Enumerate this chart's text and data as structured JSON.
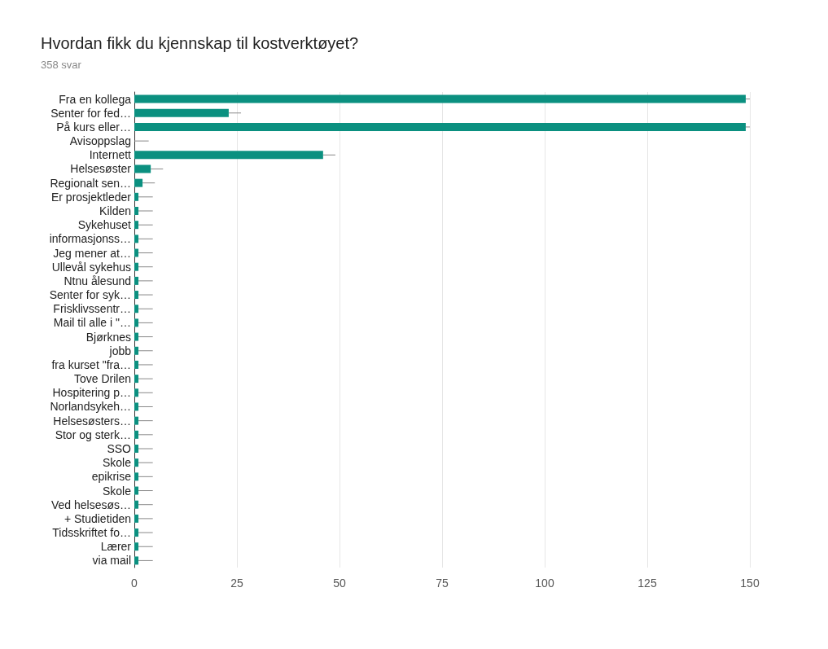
{
  "chart_data": {
    "type": "bar",
    "orientation": "horizontal",
    "title": "Hvordan fikk du kjennskap til kostverktøyet?",
    "subtitle": "358 svar",
    "categories": [
      "Fra en kollega",
      "Senter for fed…",
      "På kurs eller…",
      "Avisoppslag",
      "Internett",
      "Helsesøster",
      "Regionalt sen…",
      "Er prosjektleder",
      "Kilden",
      "Sykehuset",
      "informasjonss…",
      "Jeg mener at…",
      "Ullevål sykehus",
      "Ntnu ålesund",
      "Senter for syk…",
      "Frisklivssentr…",
      "Mail til alle i \"…",
      "Bjørknes",
      "jobb",
      "fra kurset \"fra…",
      "Tove Drilen",
      "Hospitering p…",
      "Norlandsykeh…",
      "Helsesøsters…",
      "Stor og sterk…",
      "SSO",
      "Skole",
      "epikrise",
      "Skole",
      "Ved helsesøs…",
      "+ Studietiden",
      "Tidsskriftet fo…",
      "Lærer",
      "via mail"
    ],
    "values": [
      149,
      23,
      149,
      0,
      46,
      4,
      2,
      1,
      1,
      1,
      1,
      1,
      1,
      1,
      1,
      1,
      1,
      1,
      1,
      1,
      1,
      1,
      1,
      1,
      1,
      1,
      1,
      1,
      1,
      1,
      1,
      1,
      1,
      1
    ],
    "errors": [
      [
        149,
        150
      ],
      [
        23,
        26
      ],
      [
        149,
        150
      ],
      [
        0,
        3.5
      ],
      [
        46,
        49
      ],
      [
        4,
        7
      ],
      [
        2,
        5
      ],
      [
        1,
        4.5
      ],
      [
        1,
        4.5
      ],
      [
        1,
        4.5
      ],
      [
        1,
        4.5
      ],
      [
        1,
        4.5
      ],
      [
        1,
        4.5
      ],
      [
        1,
        4.5
      ],
      [
        1,
        4.5
      ],
      [
        1,
        4.5
      ],
      [
        1,
        4.5
      ],
      [
        1,
        4.5
      ],
      [
        1,
        4.5
      ],
      [
        1,
        4.5
      ],
      [
        1,
        4.5
      ],
      [
        1,
        4.5
      ],
      [
        1,
        4.5
      ],
      [
        1,
        4.5
      ],
      [
        1,
        4.5
      ],
      [
        1,
        4.5
      ],
      [
        1,
        4.5
      ],
      [
        1,
        4.5
      ],
      [
        1,
        4.5
      ],
      [
        1,
        4.5
      ],
      [
        1,
        4.5
      ],
      [
        1,
        4.5
      ],
      [
        1,
        4.5
      ],
      [
        1,
        4.5
      ]
    ],
    "color": "#0b9080",
    "xlim": [
      0,
      150
    ],
    "xticks": [
      0,
      25,
      50,
      75,
      100,
      125,
      150
    ],
    "grid": "x"
  }
}
